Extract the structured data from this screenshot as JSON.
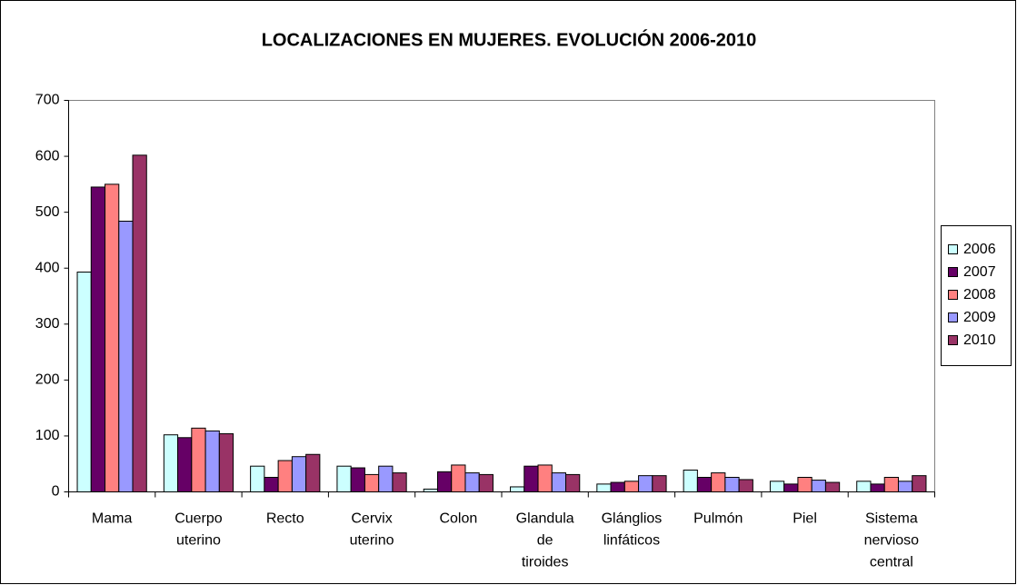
{
  "chart_data": {
    "type": "bar",
    "title": "LOCALIZACIONES EN MUJERES. EVOLUCIÓN 2006-2010",
    "categories": [
      "Mama",
      "Cuerpo uterino",
      "Recto",
      "Cervix uterino",
      "Colon",
      "Glandula de tiroides",
      "Glánglios linfáticos",
      "Pulmón",
      "Piel",
      "Sistema nervioso central"
    ],
    "series": [
      {
        "name": "2006",
        "color": "#ccffff",
        "values": [
          393,
          102,
          46,
          46,
          5,
          9,
          14,
          39,
          19,
          19
        ]
      },
      {
        "name": "2007",
        "color": "#660066",
        "values": [
          545,
          97,
          26,
          43,
          36,
          46,
          17,
          26,
          14,
          14
        ]
      },
      {
        "name": "2008",
        "color": "#ff8080",
        "values": [
          550,
          114,
          56,
          31,
          48,
          48,
          19,
          34,
          26,
          26
        ]
      },
      {
        "name": "2009",
        "color": "#9999ff",
        "values": [
          484,
          109,
          63,
          46,
          34,
          34,
          29,
          26,
          21,
          19
        ]
      },
      {
        "name": "2010",
        "color": "#993366",
        "values": [
          602,
          104,
          67,
          34,
          31,
          31,
          29,
          22,
          17,
          29
        ]
      }
    ],
    "ylim": [
      0,
      700
    ],
    "yticks": [
      0,
      100,
      200,
      300,
      400,
      500,
      600,
      700
    ],
    "grid": false,
    "legend": "right"
  }
}
